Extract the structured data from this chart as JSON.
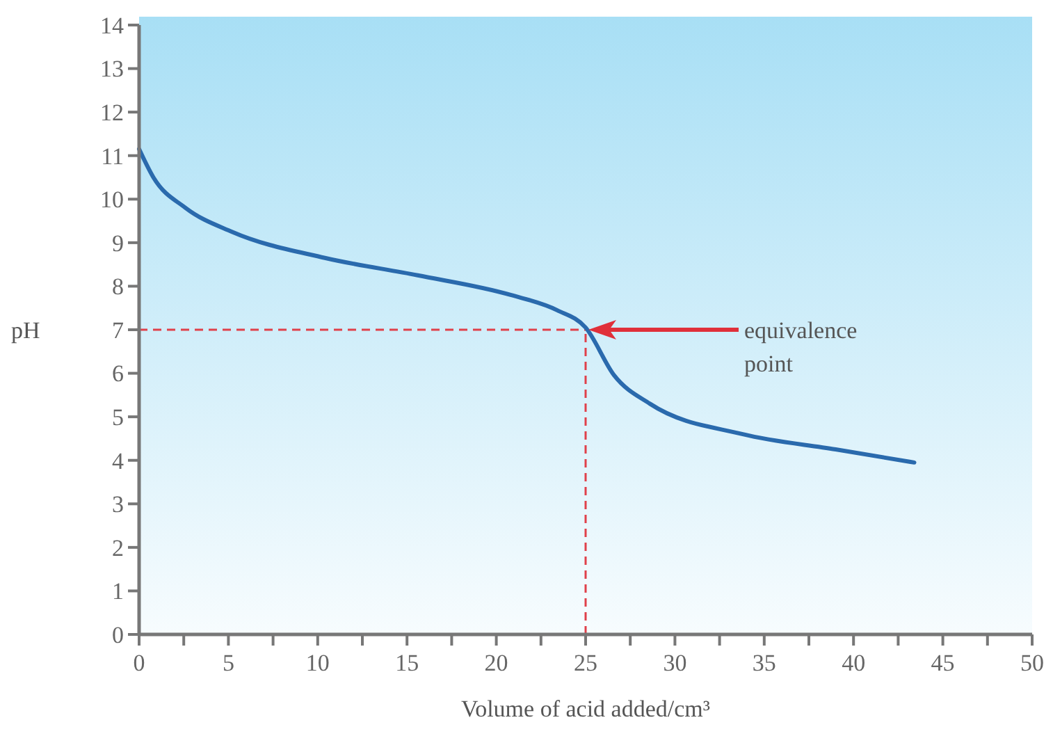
{
  "chart_data": {
    "type": "line",
    "xlabel": "Volume of acid added/cm³",
    "ylabel": "pH",
    "xlim": [
      0,
      50
    ],
    "ylim": [
      0,
      14
    ],
    "xticks": [
      0,
      {
        "value": 2.5,
        "label": null
      },
      5,
      {
        "value": 7.5,
        "label": null
      },
      10,
      {
        "value": 12.5,
        "label": null
      },
      15,
      {
        "value": 17.5,
        "label": null
      },
      20,
      {
        "value": 22.5,
        "label": null
      },
      25,
      {
        "value": 27.5,
        "label": null
      },
      30,
      {
        "value": 32.5,
        "label": null
      },
      35,
      {
        "value": 37.5,
        "label": null
      },
      40,
      {
        "value": 42.5,
        "label": null
      },
      45,
      {
        "value": 47.5,
        "label": null
      },
      50
    ],
    "yticks": [
      0,
      1,
      2,
      3,
      4,
      5,
      6,
      7,
      8,
      9,
      10,
      11,
      12,
      13,
      14
    ],
    "grid": false,
    "marker": "none",
    "line_style": "solid",
    "series": [
      {
        "color": "#2a6aad",
        "x": [
          0,
          0.8,
          2.6,
          5.2,
          10.4,
          15.6,
          20.8,
          23.4,
          25,
          26.6,
          28.6,
          33.8,
          39,
          43.4
        ],
        "values": [
          11.15,
          10.5,
          9.8,
          9.25,
          8.65,
          8.25,
          7.8,
          7.45,
          7.05,
          5.95,
          5.3,
          4.6,
          4.25,
          3.95
        ]
      }
    ],
    "ref_lines": [
      {
        "axis": "x",
        "value": 25,
        "color": "#e0404a",
        "line_style": "dashed"
      },
      {
        "axis": "y",
        "value": 7,
        "color": "#e0404a",
        "line_style": "dashed"
      }
    ],
    "annotations": [
      "equivalence\npoint"
    ]
  }
}
